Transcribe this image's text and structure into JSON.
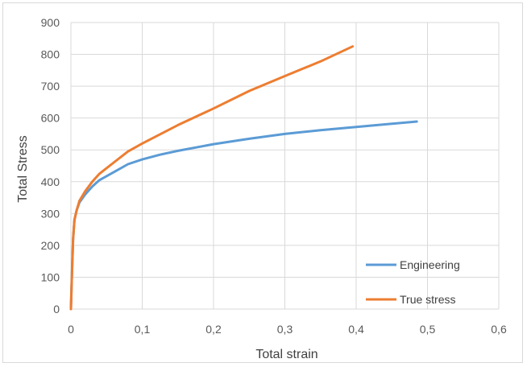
{
  "chart_data": {
    "type": "line",
    "xlabel": "Total strain",
    "ylabel": "Total Stress",
    "xlim": [
      0,
      0.6
    ],
    "ylim": [
      0,
      900
    ],
    "x_ticks": [
      0,
      0.1,
      0.2,
      0.3,
      0.4,
      0.5,
      0.6
    ],
    "x_tick_labels": [
      "0",
      "0,1",
      "0,2",
      "0,3",
      "0,4",
      "0,5",
      "0,6"
    ],
    "y_ticks": [
      0,
      100,
      200,
      300,
      400,
      500,
      600,
      700,
      800,
      900
    ],
    "y_tick_labels": [
      "0",
      "100",
      "200",
      "300",
      "400",
      "500",
      "600",
      "700",
      "800",
      "900"
    ],
    "grid": true,
    "legend_position": "bottom-right",
    "series": [
      {
        "name": "Engineering",
        "color": "#5b9bd5",
        "points": [
          [
            0,
            0
          ],
          [
            0.001,
            80
          ],
          [
            0.002,
            150
          ],
          [
            0.003,
            220
          ],
          [
            0.005,
            280
          ],
          [
            0.008,
            310
          ],
          [
            0.012,
            335
          ],
          [
            0.02,
            360
          ],
          [
            0.03,
            385
          ],
          [
            0.04,
            405
          ],
          [
            0.06,
            430
          ],
          [
            0.08,
            455
          ],
          [
            0.1,
            470
          ],
          [
            0.125,
            485
          ],
          [
            0.15,
            497
          ],
          [
            0.2,
            518
          ],
          [
            0.25,
            535
          ],
          [
            0.3,
            550
          ],
          [
            0.35,
            562
          ],
          [
            0.4,
            572
          ],
          [
            0.45,
            582
          ],
          [
            0.485,
            589
          ]
        ]
      },
      {
        "name": "True stress",
        "color": "#ed7d31",
        "points": [
          [
            0,
            0
          ],
          [
            0.001,
            80
          ],
          [
            0.002,
            150
          ],
          [
            0.003,
            220
          ],
          [
            0.005,
            280
          ],
          [
            0.008,
            310
          ],
          [
            0.012,
            340
          ],
          [
            0.02,
            370
          ],
          [
            0.03,
            400
          ],
          [
            0.04,
            425
          ],
          [
            0.06,
            460
          ],
          [
            0.08,
            495
          ],
          [
            0.1,
            520
          ],
          [
            0.15,
            578
          ],
          [
            0.2,
            630
          ],
          [
            0.25,
            685
          ],
          [
            0.3,
            732
          ],
          [
            0.35,
            778
          ],
          [
            0.395,
            825
          ]
        ]
      }
    ]
  }
}
